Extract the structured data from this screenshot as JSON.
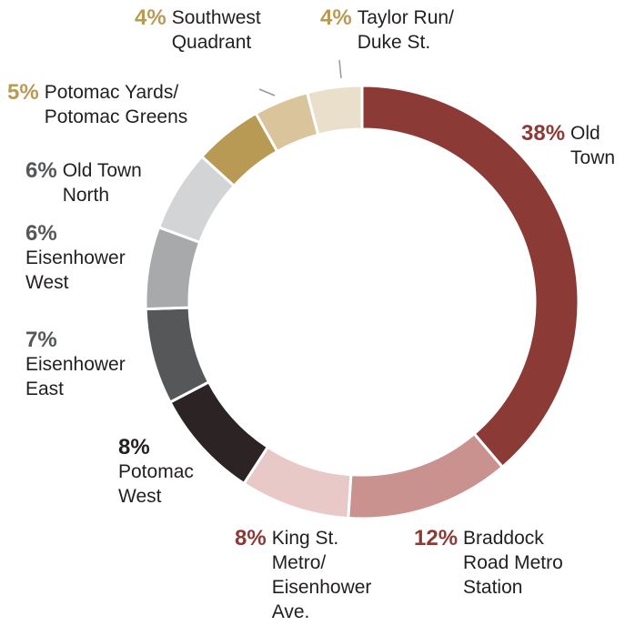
{
  "chart_data": {
    "type": "donut",
    "categories": [
      "Old Town",
      "Braddock Road Metro Station",
      "King St. Metro/ Eisenhower Ave.",
      "Potomac West",
      "Eisenhower East",
      "Eisenhower West",
      "Old Town North",
      "Potomac Yards/ Potomac Greens",
      "Southwest Quadrant",
      "Taylor Run/ Duke St."
    ],
    "values": [
      38,
      12,
      8,
      8,
      7,
      6,
      6,
      5,
      4,
      4
    ],
    "value_labels": [
      "38%",
      "12%",
      "8%",
      "8%",
      "7%",
      "6%",
      "6%",
      "5%",
      "4%",
      "4%"
    ],
    "colors": [
      "#8b3a36",
      "#c9928f",
      "#e8c9c7",
      "#2b2324",
      "#555759",
      "#a8a9ab",
      "#d3d4d6",
      "#b89a55",
      "#d9c49b",
      "#eadfcb"
    ],
    "label_colors": [
      "#8b3a36",
      "#8b3a36",
      "#8b3a36",
      "#231f20",
      "#555759",
      "#555759",
      "#555759",
      "#b89a55",
      "#b89a55",
      "#b89a55"
    ]
  }
}
